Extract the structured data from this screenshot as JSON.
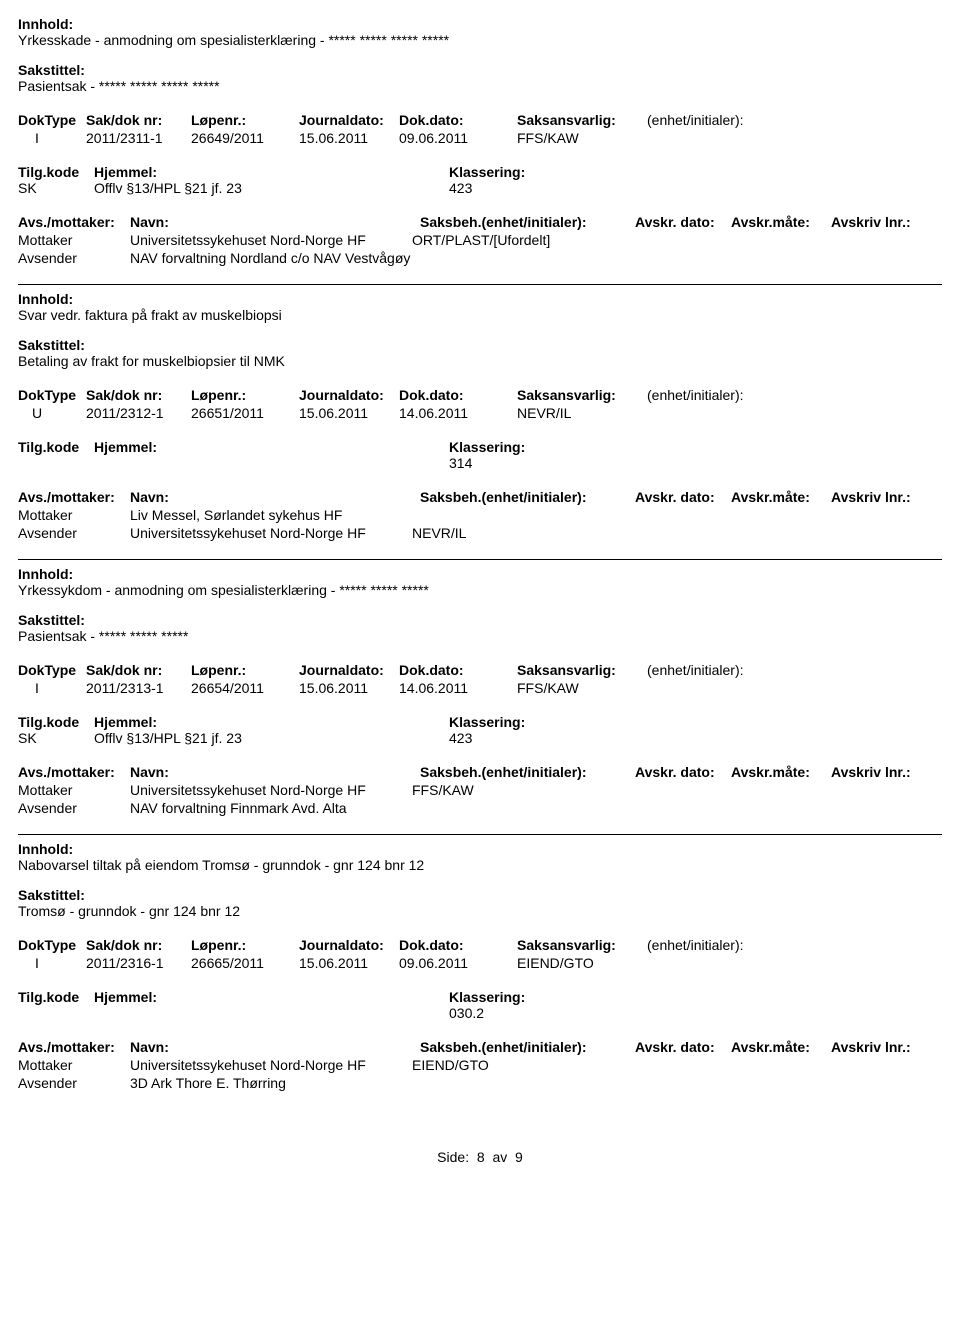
{
  "labels": {
    "innhold": "Innhold:",
    "sakstittel": "Sakstittel:",
    "doktype": "DokType",
    "saknr": "Sak/dok nr:",
    "lopenr": "Løpenr.:",
    "journaldato": "Journaldato:",
    "dokdato": "Dok.dato:",
    "saksansvarlig": "Saksansvarlig:",
    "enhet": "(enhet/initialer):",
    "tilgkode": "Tilg.kode",
    "hjemmel": "Hjemmel:",
    "klassering": "Klassering:",
    "avsmottaker": "Avs./mottaker:",
    "navn": "Navn:",
    "saksbeh": "Saksbeh.(enhet/initialer):",
    "avskrdato": "Avskr. dato:",
    "avskrmate": "Avskr.måte:",
    "avskrlnr": "Avskriv lnr.:",
    "mottaker": "Mottaker",
    "avsender": "Avsender"
  },
  "entries": [
    {
      "innhold": "Yrkesskade - anmodning om spesialisterklæring - ***** ***** ***** *****",
      "sakstittel": "Pasientsak - ***** ***** ***** *****",
      "doktype": "I",
      "saknr": "2011/2311-1",
      "lopenr": "26649/2011",
      "journaldato": "15.06.2011",
      "dokdato": "09.06.2011",
      "saksansvarlig": "FFS/KAW",
      "tilgkode": "SK",
      "hjemmel": "Offlv §13/HPL §21 jf. 23",
      "klassering": "423",
      "parties": [
        {
          "role": "Mottaker",
          "name": "Universitetssykehuset Nord-Norge HF",
          "caseworker": "ORT/PLAST/[Ufordelt]"
        },
        {
          "role": "Avsender",
          "name": "NAV forvaltning Nordland c/o NAV Vestvågøy",
          "caseworker": ""
        }
      ]
    },
    {
      "innhold": "Svar vedr. faktura på frakt av muskelbiopsi",
      "sakstittel": "Betaling av frakt for muskelbiopsier til NMK",
      "doktype": "U",
      "saknr": "2011/2312-1",
      "lopenr": "26651/2011",
      "journaldato": "15.06.2011",
      "dokdato": "14.06.2011",
      "saksansvarlig": "NEVR/IL",
      "tilgkode": "",
      "hjemmel": "",
      "klassering": "314",
      "parties": [
        {
          "role": "Mottaker",
          "name": "Liv Messel, Sørlandet sykehus HF",
          "caseworker": ""
        },
        {
          "role": "Avsender",
          "name": "Universitetssykehuset Nord-Norge HF",
          "caseworker": "NEVR/IL"
        }
      ]
    },
    {
      "innhold": "Yrkessykdom - anmodning om spesialisterklæring - ***** ***** *****",
      "sakstittel": "Pasientsak - ***** ***** *****",
      "doktype": "I",
      "saknr": "2011/2313-1",
      "lopenr": "26654/2011",
      "journaldato": "15.06.2011",
      "dokdato": "14.06.2011",
      "saksansvarlig": "FFS/KAW",
      "tilgkode": "SK",
      "hjemmel": "Offlv §13/HPL §21 jf. 23",
      "klassering": "423",
      "parties": [
        {
          "role": "Mottaker",
          "name": "Universitetssykehuset Nord-Norge HF",
          "caseworker": "FFS/KAW"
        },
        {
          "role": "Avsender",
          "name": "NAV forvaltning Finnmark Avd. Alta",
          "caseworker": ""
        }
      ]
    },
    {
      "innhold": "Nabovarsel tiltak på eiendom Tromsø - grunndok - gnr 124 bnr 12",
      "sakstittel": "Tromsø - grunndok - gnr 124 bnr 12",
      "doktype": "I",
      "saknr": "2011/2316-1",
      "lopenr": "26665/2011",
      "journaldato": "15.06.2011",
      "dokdato": "09.06.2011",
      "saksansvarlig": "EIEND/GTO",
      "tilgkode": "",
      "hjemmel": "",
      "klassering": "030.2",
      "parties": [
        {
          "role": "Mottaker",
          "name": "Universitetssykehuset Nord-Norge HF",
          "caseworker": "EIEND/GTO"
        },
        {
          "role": "Avsender",
          "name": "3D Ark Thore E. Thørring",
          "caseworker": ""
        }
      ]
    }
  ],
  "footer": {
    "side": "Side:",
    "page": "8",
    "av": "av",
    "total": "9"
  }
}
